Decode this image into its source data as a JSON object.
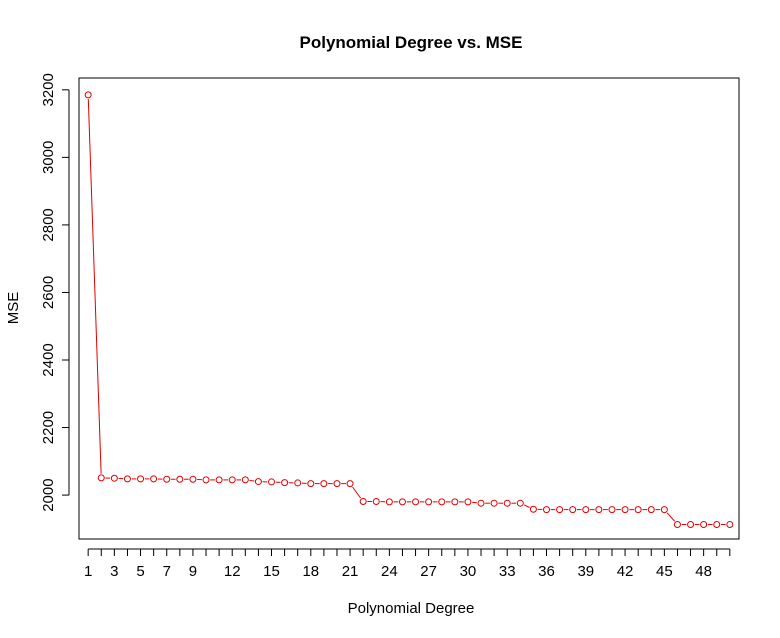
{
  "chart_data": {
    "type": "line",
    "title": "Polynomial Degree vs. MSE",
    "xlabel": "Polynomial Degree",
    "ylabel": "MSE",
    "xlim": [
      0.3,
      50.7
    ],
    "ylim": [
      1870,
      3235
    ],
    "x_ticks": [
      1,
      2,
      3,
      4,
      5,
      6,
      7,
      8,
      9,
      10,
      11,
      12,
      13,
      14,
      15,
      16,
      17,
      18,
      19,
      20,
      21,
      22,
      23,
      24,
      25,
      26,
      27,
      28,
      29,
      30,
      31,
      32,
      33,
      34,
      35,
      36,
      37,
      38,
      39,
      40,
      41,
      42,
      43,
      44,
      45,
      46,
      47,
      48,
      49,
      50
    ],
    "x_tick_labels": [
      "1",
      "3",
      "5",
      "7",
      "9",
      "12",
      "15",
      "18",
      "21",
      "24",
      "27",
      "30",
      "33",
      "36",
      "39",
      "42",
      "45",
      "48"
    ],
    "x_tick_label_values": [
      1,
      3,
      5,
      7,
      9,
      12,
      15,
      18,
      21,
      24,
      27,
      30,
      33,
      36,
      39,
      42,
      45,
      48
    ],
    "y_ticks": [
      2000,
      2200,
      2400,
      2600,
      2800,
      3000,
      3200
    ],
    "y_tick_labels": [
      "2000",
      "2200",
      "2400",
      "2600",
      "2800",
      "3000",
      "3200"
    ],
    "grid": false,
    "series": [
      {
        "color": "#e00000",
        "x": [
          1,
          2,
          3,
          4,
          5,
          6,
          7,
          8,
          9,
          10,
          11,
          12,
          13,
          14,
          15,
          16,
          17,
          18,
          19,
          20,
          21,
          22,
          23,
          24,
          25,
          26,
          27,
          28,
          29,
          30,
          31,
          32,
          33,
          34,
          35,
          36,
          37,
          38,
          39,
          40,
          41,
          42,
          43,
          44,
          45,
          46,
          47,
          48,
          49,
          50
        ],
        "values": [
          3185,
          2051,
          2050,
          2048,
          2048,
          2048,
          2047,
          2047,
          2047,
          2045,
          2045,
          2045,
          2045,
          2040,
          2039,
          2037,
          2036,
          2034,
          2034,
          2034,
          2034,
          1981,
          1981,
          1980,
          1980,
          1980,
          1980,
          1980,
          1980,
          1980,
          1976,
          1976,
          1976,
          1976,
          1958,
          1957,
          1957,
          1957,
          1957,
          1957,
          1957,
          1957,
          1957,
          1957,
          1957,
          1913,
          1913,
          1913,
          1913,
          1913
        ]
      }
    ]
  }
}
